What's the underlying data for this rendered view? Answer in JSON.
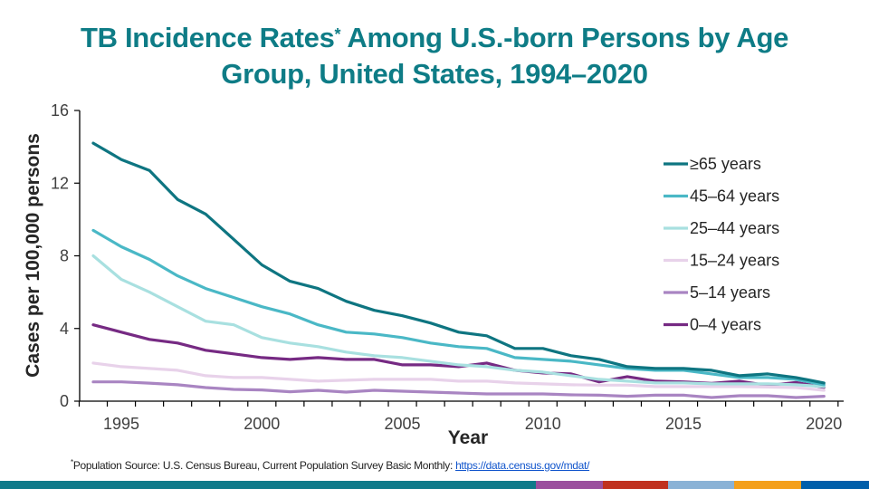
{
  "title": {
    "line1_pre": "TB Incidence Rates",
    "marker": "*",
    "line1_post": " Among U.S.-born Persons by Age",
    "line2": "Group, United States, 1994–2020"
  },
  "footnote": {
    "marker": "*",
    "text": "Population Source: U.S. Census Bureau, Current Population Survey Basic Monthly: ",
    "link_text": "https://data.census.gov/mdat/"
  },
  "color_bar": [
    "#0f7a8a",
    "#9b4f9e",
    "#c0311f",
    "#8ab2d6",
    "#f4a01c",
    "#005eaa"
  ],
  "chart_data": {
    "type": "line",
    "title": "TB Incidence Rates Among U.S.-born Persons by Age Group, United States, 1994–2020",
    "xlabel": "Year",
    "ylabel": "Cases per 100,000 persons",
    "ylim": [
      0,
      16
    ],
    "yticks": [
      0,
      4,
      8,
      12,
      16
    ],
    "ytick_labels": [
      "0",
      "4",
      "8",
      "12",
      "16"
    ],
    "xlim": [
      1994,
      2020
    ],
    "xticks": [
      1995,
      2000,
      2005,
      2010,
      2015,
      2020
    ],
    "xtick_labels": [
      "1995",
      "2000",
      "2005",
      "2010",
      "2015",
      "2020"
    ],
    "grid": false,
    "legend_position": "right",
    "x": [
      1994,
      1995,
      1996,
      1997,
      1998,
      1999,
      2000,
      2001,
      2002,
      2003,
      2004,
      2005,
      2006,
      2007,
      2008,
      2009,
      2010,
      2011,
      2012,
      2013,
      2014,
      2015,
      2016,
      2017,
      2018,
      2019,
      2020
    ],
    "series": [
      {
        "name": "≥65 years",
        "color": "#0e7581",
        "values": [
          14.2,
          13.3,
          12.7,
          11.1,
          10.3,
          8.9,
          7.5,
          6.6,
          6.2,
          5.5,
          5.0,
          4.7,
          4.3,
          3.8,
          3.6,
          2.9,
          2.9,
          2.5,
          2.3,
          1.9,
          1.8,
          1.8,
          1.7,
          1.4,
          1.5,
          1.3,
          1.0
        ]
      },
      {
        "name": "45–64 years",
        "color": "#4ab8c6",
        "values": [
          9.4,
          8.5,
          7.8,
          6.9,
          6.2,
          5.7,
          5.2,
          4.8,
          4.2,
          3.8,
          3.7,
          3.5,
          3.2,
          3.0,
          2.9,
          2.4,
          2.3,
          2.2,
          2.0,
          1.8,
          1.7,
          1.7,
          1.5,
          1.3,
          1.3,
          1.2,
          0.9
        ]
      },
      {
        "name": "25–44 years",
        "color": "#a8e0e0",
        "values": [
          8.0,
          6.7,
          6.0,
          5.2,
          4.4,
          4.2,
          3.5,
          3.2,
          3.0,
          2.7,
          2.5,
          2.4,
          2.2,
          2.0,
          1.9,
          1.7,
          1.6,
          1.4,
          1.2,
          1.1,
          1.0,
          1.0,
          0.95,
          0.95,
          0.95,
          0.9,
          0.8
        ]
      },
      {
        "name": "15–24 years",
        "color": "#e8d2ea",
        "values": [
          2.1,
          1.9,
          1.8,
          1.7,
          1.4,
          1.3,
          1.3,
          1.2,
          1.1,
          1.15,
          1.2,
          1.2,
          1.2,
          1.1,
          1.1,
          1.0,
          0.95,
          0.9,
          0.88,
          0.88,
          0.8,
          0.8,
          0.8,
          0.8,
          0.78,
          0.75,
          0.6
        ]
      },
      {
        "name": "5–14 years",
        "color": "#a985c2",
        "values": [
          1.06,
          1.06,
          0.99,
          0.9,
          0.75,
          0.65,
          0.62,
          0.52,
          0.6,
          0.5,
          0.6,
          0.55,
          0.5,
          0.45,
          0.4,
          0.4,
          0.4,
          0.35,
          0.33,
          0.27,
          0.33,
          0.33,
          0.2,
          0.3,
          0.3,
          0.2,
          0.27
        ]
      },
      {
        "name": "0–4 years",
        "color": "#762a83",
        "values": [
          4.2,
          3.8,
          3.4,
          3.2,
          2.8,
          2.6,
          2.4,
          2.3,
          2.4,
          2.3,
          2.3,
          2.0,
          2.0,
          1.9,
          2.1,
          1.7,
          1.55,
          1.5,
          1.06,
          1.35,
          1.1,
          1.06,
          0.98,
          1.1,
          0.86,
          1.03,
          0.76
        ]
      }
    ]
  }
}
